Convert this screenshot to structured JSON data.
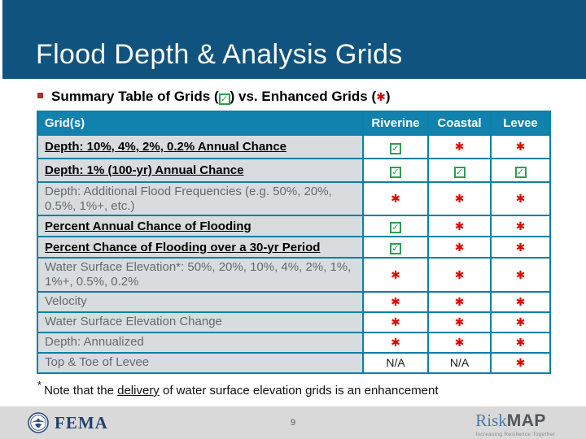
{
  "slide_title": "Flood Depth & Analysis Grids",
  "heading": {
    "prefix": "Summary Table of Grids (",
    "mid": ") vs. Enhanced Grids (",
    "suffix": ")"
  },
  "icons": {
    "check": "✓",
    "star": "✱"
  },
  "table": {
    "headers": [
      "Grid(s)",
      "Riverine",
      "Coastal",
      "Levee"
    ],
    "na_label": "N/A",
    "rows": [
      {
        "label": "Depth: 10%, 4%, 2%, 0.2% Annual Chance",
        "emphasis": true,
        "cells": [
          "check",
          "star",
          "star"
        ]
      },
      {
        "label": "Depth: 1% (100-yr) Annual Chance",
        "emphasis": true,
        "cells": [
          "check",
          "check",
          "check"
        ]
      },
      {
        "label": "Depth: Additional Flood Frequencies (e.g. 50%, 20%, 0.5%, 1%+, etc.)",
        "emphasis": false,
        "cells": [
          "star",
          "star",
          "star"
        ]
      },
      {
        "label": "Percent Annual Chance of Flooding",
        "emphasis": true,
        "cells": [
          "check",
          "star",
          "star"
        ]
      },
      {
        "label": "Percent Chance of Flooding over a 30-yr Period",
        "emphasis": true,
        "cells": [
          "check",
          "star",
          "star"
        ]
      },
      {
        "label": "Water Surface Elevation*: 50%, 20%, 10%, 4%, 2%, 1%, 1%+, 0.5%, 0.2%",
        "emphasis": false,
        "cells": [
          "star",
          "star",
          "star"
        ]
      },
      {
        "label": "Velocity",
        "emphasis": false,
        "cells": [
          "star",
          "star",
          "star"
        ]
      },
      {
        "label": "Water Surface Elevation Change",
        "emphasis": false,
        "cells": [
          "star",
          "star",
          "star"
        ]
      },
      {
        "label": "Depth: Annualized",
        "emphasis": false,
        "cells": [
          "star",
          "star",
          "star"
        ]
      },
      {
        "label": "Top & Toe of Levee",
        "emphasis": false,
        "cells": [
          "na",
          "na",
          "star"
        ]
      }
    ]
  },
  "footnote": {
    "marker": "*",
    "text_before": "Note that the ",
    "underlined_word": "delivery",
    "text_after": " of water surface elevation grids is an enhancement"
  },
  "footer": {
    "fema_label": "FEMA",
    "page_number": "9",
    "riskmap": {
      "risk": "Risk",
      "map": "MAP",
      "tagline": "Increasing Resilience Together"
    }
  },
  "colors": {
    "band_blue": "#10537F",
    "table_header_teal": "#1182AE",
    "table_border_teal": "#0E7FA8",
    "label_cell_gray": "#D9DCDE",
    "check_green": "#2F9E52",
    "star_red": "#E10600",
    "bullet_maroon": "#A33431",
    "footer_gray": "#D9D9D9",
    "fema_navy": "#24406E",
    "risk_blue": "#4A79A8"
  }
}
